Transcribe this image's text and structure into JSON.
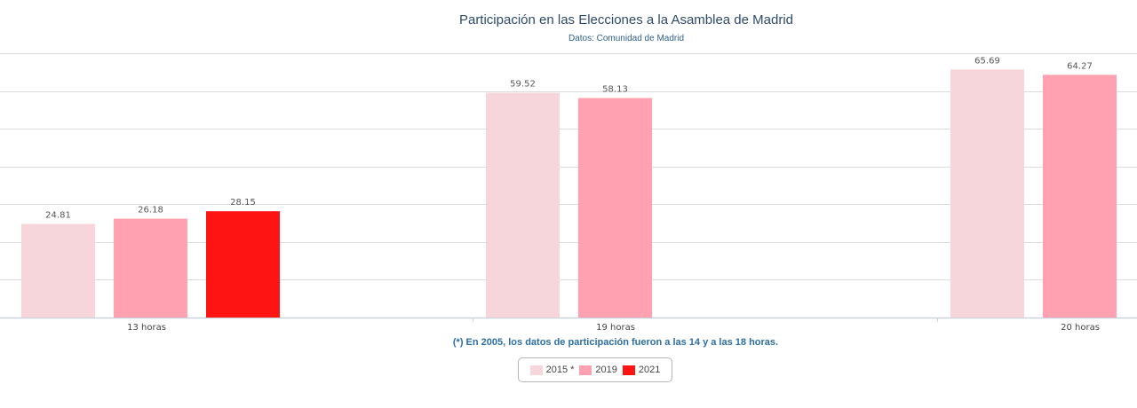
{
  "chart_data": {
    "type": "bar",
    "title": "Participación en las Elecciones a la Asamblea de Madrid",
    "subtitle": "Datos: Comunidad de Madrid",
    "categories": [
      "13 horas",
      "19 horas",
      "20 horas"
    ],
    "series": [
      {
        "name": "2015 *",
        "color": "#f6d6da",
        "values": [
          24.81,
          59.52,
          65.69
        ]
      },
      {
        "name": "2019",
        "color": "#ffa1b0",
        "values": [
          26.18,
          58.13,
          64.27
        ]
      },
      {
        "name": "2021",
        "color": "#ff1414",
        "values": [
          28.15,
          null,
          null
        ]
      }
    ],
    "ylim": [
      0,
      70
    ],
    "grid": true,
    "legend": "bottom-center",
    "note": "(*) En 2005, los datos de participación fueron a las 14 y a las 18 horas."
  }
}
